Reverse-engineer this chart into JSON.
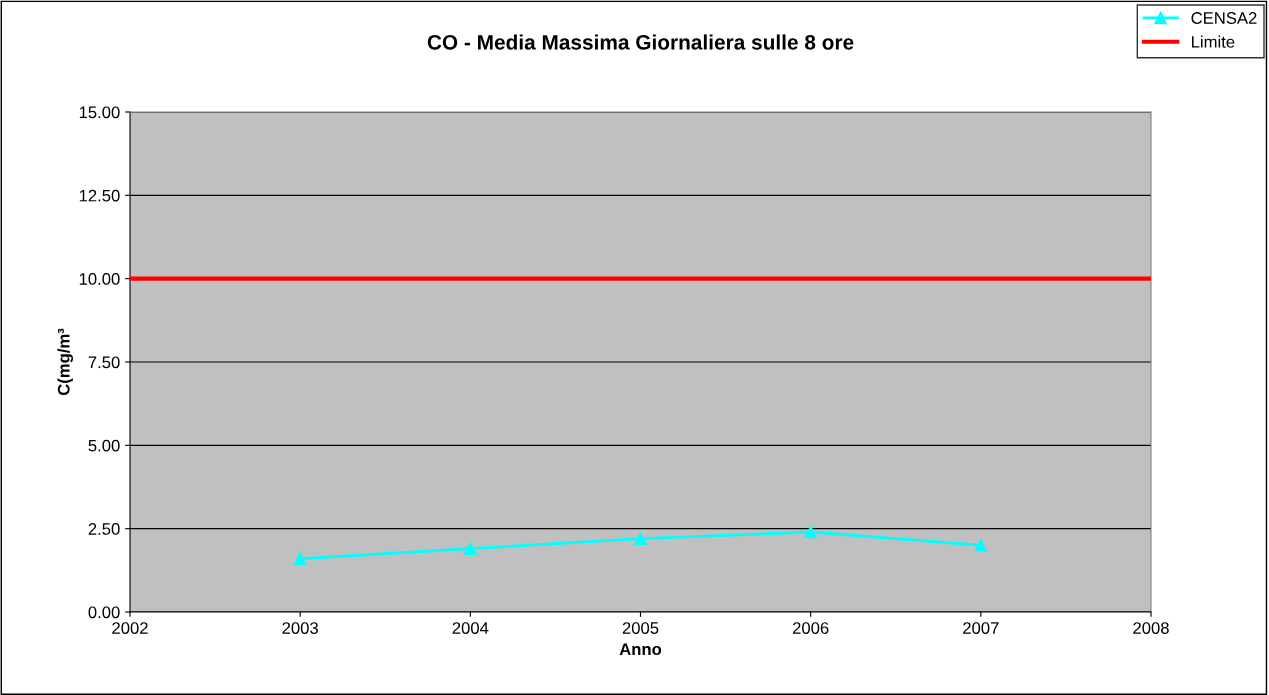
{
  "chart_data": {
    "type": "line",
    "title": "CO - Media Massima Giornaliera sulle 8 ore",
    "xlabel": "Anno",
    "ylabel": "C(mg/m³",
    "series": [
      {
        "name": "CENSA2",
        "color": "#00ffff",
        "x": [
          2003,
          2004,
          2005,
          2006,
          2007
        ],
        "values": [
          1.6,
          1.9,
          2.2,
          2.4,
          2.0
        ],
        "marker": "triangle"
      },
      {
        "name": "Limite",
        "color": "#ff0000",
        "x": [
          2002,
          2008
        ],
        "values": [
          10,
          10
        ],
        "marker": "none"
      }
    ],
    "xlim": [
      2002,
      2008
    ],
    "xticks": [
      2002,
      2003,
      2004,
      2005,
      2006,
      2007,
      2008
    ],
    "ylim": [
      0,
      15
    ],
    "yticks": [
      {
        "value": 0,
        "label": "0.00"
      },
      {
        "value": 2.5,
        "label": "2.50"
      },
      {
        "value": 5,
        "label": "5.00"
      },
      {
        "value": 7.5,
        "label": "7.50"
      },
      {
        "value": 10,
        "label": "10.00"
      },
      {
        "value": 12.5,
        "label": "12.50"
      },
      {
        "value": 15,
        "label": "15.00"
      }
    ],
    "grid": "y",
    "legend": "top right"
  }
}
